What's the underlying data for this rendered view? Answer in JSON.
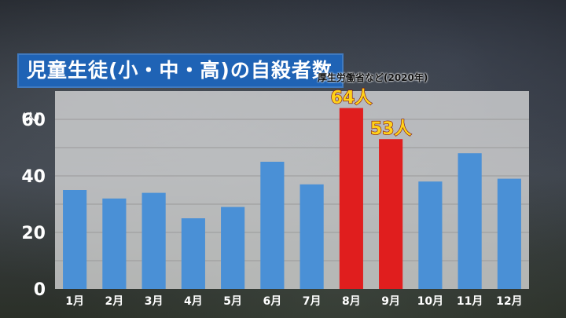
{
  "title": "児童生徒(小・中・高)の自殺者数",
  "source": "厚生労働省など(2020年)",
  "chart_data": {
    "type": "bar",
    "categories": [
      "1月",
      "2月",
      "3月",
      "4月",
      "5月",
      "6月",
      "7月",
      "8月",
      "9月",
      "10月",
      "11月",
      "12月"
    ],
    "values": [
      35,
      32,
      34,
      25,
      29,
      45,
      37,
      64,
      53,
      38,
      48,
      39
    ],
    "highlight": [
      7,
      8
    ],
    "data_labels": [
      {
        "index": 7,
        "text": "64人"
      },
      {
        "index": 8,
        "text": "53人"
      }
    ],
    "ylabel": "(人)",
    "yticks": [
      0,
      20,
      40,
      60
    ],
    "ylim": [
      0,
      70
    ],
    "colors": {
      "normal": "#4a90d6",
      "highlight": "#e01e1e",
      "label": "#ffd21a"
    }
  }
}
